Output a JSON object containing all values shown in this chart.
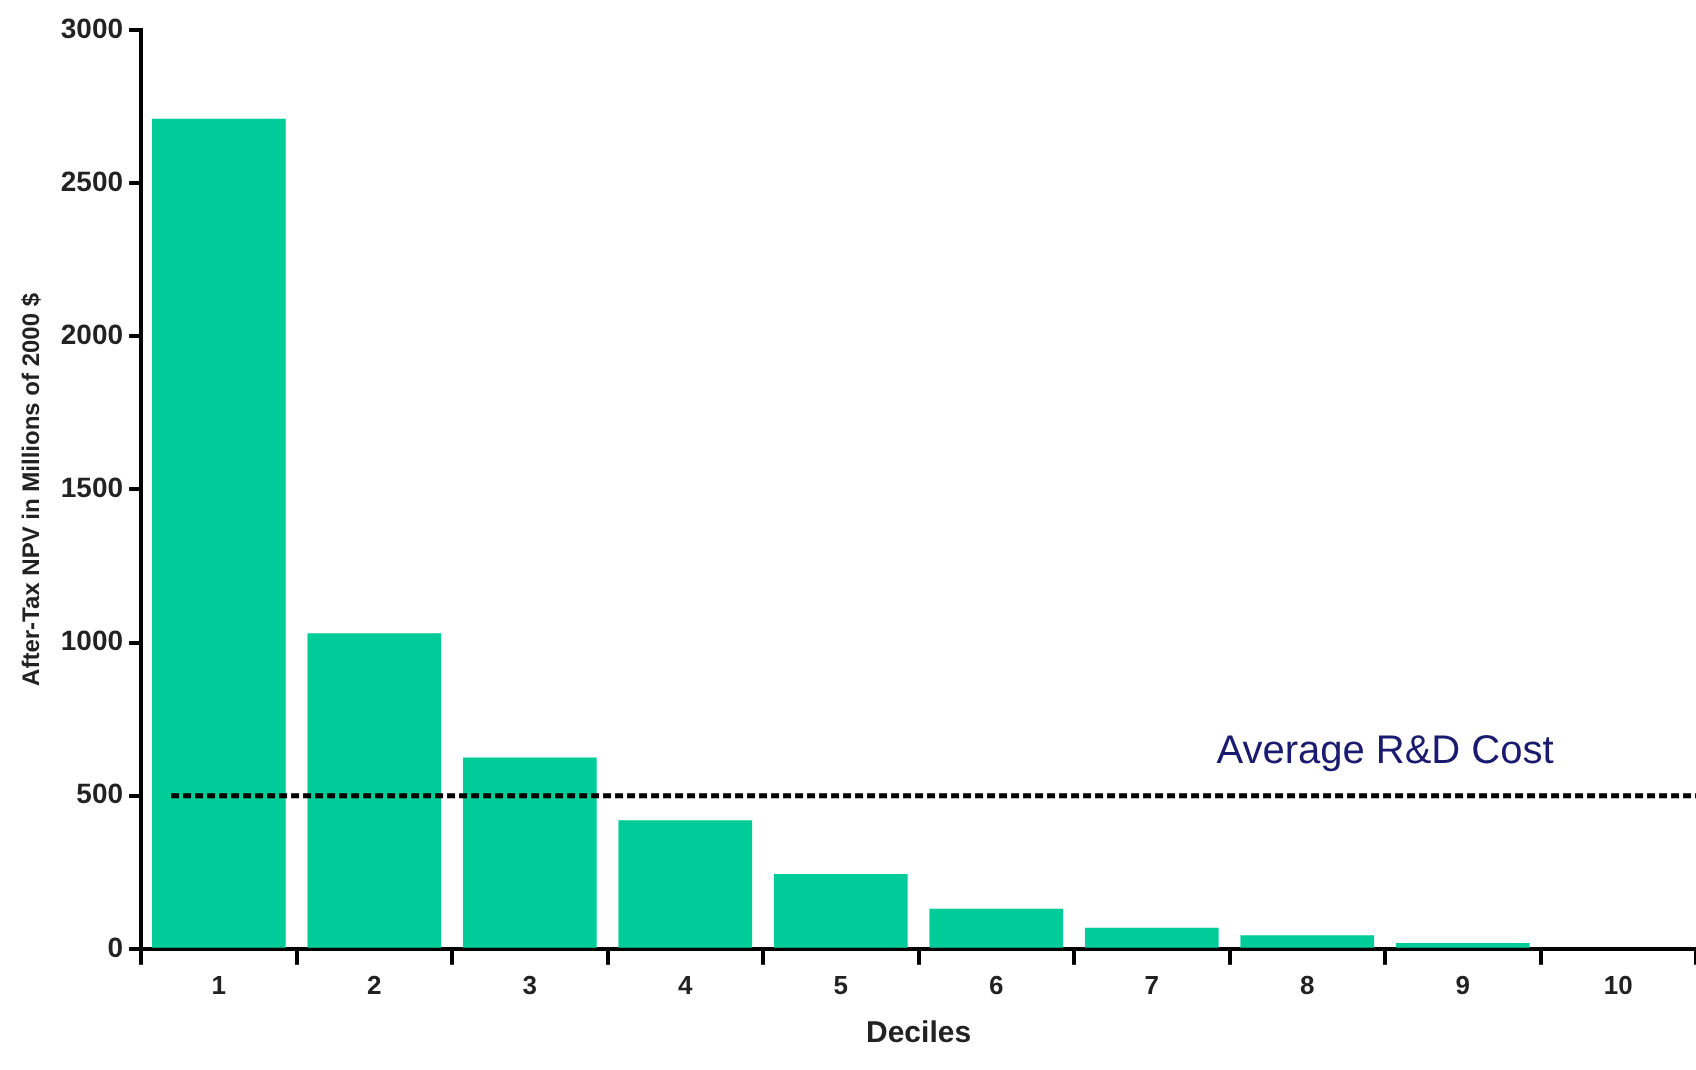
{
  "chart_data": {
    "type": "bar",
    "xlabel": "Deciles",
    "ylabel": "After-Tax NPV in Millions of 2000 $",
    "categories": [
      "1",
      "2",
      "3",
      "4",
      "5",
      "6",
      "7",
      "8",
      "9",
      "10"
    ],
    "values": [
      2710,
      1030,
      625,
      420,
      244,
      131,
      69,
      44,
      19,
      0
    ],
    "color": "#00cc99",
    "ylim": [
      0,
      3000
    ],
    "yticks": [
      0,
      500,
      1000,
      1500,
      2000,
      2500,
      3000
    ],
    "grid": false,
    "legend": false,
    "ref_lines": [
      {
        "axis": "y",
        "value": 500,
        "label": "Average R&D Cost",
        "color": "#000000",
        "line_style": "dashed"
      }
    ]
  }
}
